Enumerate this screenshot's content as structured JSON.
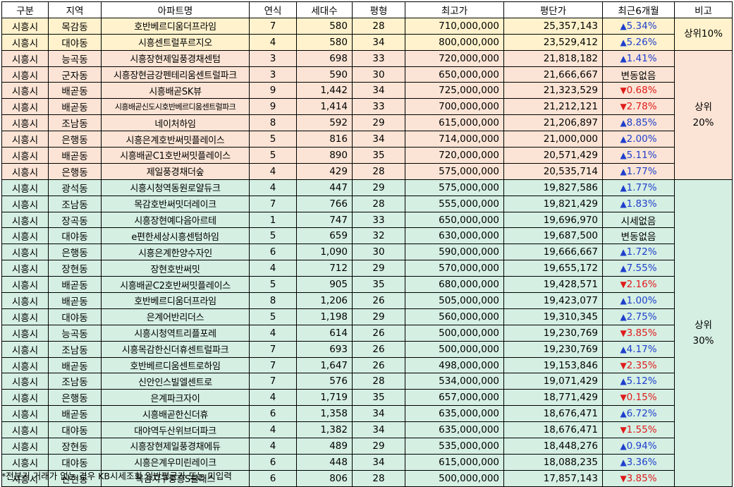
{
  "headers": [
    "구분",
    "지역",
    "아파트명",
    "연식",
    "세대수",
    "평형",
    "최고가",
    "평단가",
    "최근6개월",
    "비고"
  ],
  "groups": [
    {
      "label": "상위10%",
      "class": "g1",
      "start": 0,
      "count": 2
    },
    {
      "label": "상위\n20%",
      "class": "g2",
      "start": 2,
      "count": 8
    },
    {
      "label": "상위\n30%",
      "class": "g3",
      "start": 10,
      "count": 19
    }
  ],
  "rows": [
    {
      "gu": "시흥시",
      "dong": "목감동",
      "apt": "호반베르디움더프라임",
      "age": "7",
      "units": "580",
      "size": "28",
      "max": "710,000,000",
      "ppp": "25,357,143",
      "chg": "5.34%",
      "dir": "up",
      "g": "g1"
    },
    {
      "gu": "시흥시",
      "dong": "대야동",
      "apt": "시흥센트럴푸르지오",
      "age": "4",
      "units": "580",
      "size": "34",
      "max": "800,000,000",
      "ppp": "23,529,412",
      "chg": "5.26%",
      "dir": "up",
      "g": "g1"
    },
    {
      "gu": "시흥시",
      "dong": "능곡동",
      "apt": "시흥장현제일풍경채센텀",
      "age": "3",
      "units": "698",
      "size": "33",
      "max": "720,000,000",
      "ppp": "21,818,182",
      "chg": "1.41%",
      "dir": "up",
      "g": "g2"
    },
    {
      "gu": "시흥시",
      "dong": "군자동",
      "apt": "시흥장현금강펜테리움센트럴파크",
      "age": "3",
      "units": "590",
      "size": "30",
      "max": "650,000,000",
      "ppp": "21,666,667",
      "chg": "변동없음",
      "dir": "flat",
      "g": "g2"
    },
    {
      "gu": "시흥시",
      "dong": "배곧동",
      "apt": "시흥배곧SK뷰",
      "age": "9",
      "units": "1,442",
      "size": "34",
      "max": "725,000,000",
      "ppp": "21,323,529",
      "chg": "0.68%",
      "dir": "down",
      "g": "g2"
    },
    {
      "gu": "시흥시",
      "dong": "배곧동",
      "apt": "시흥배곧신도시호반베르디움센트럴파크",
      "age": "9",
      "units": "1,414",
      "size": "33",
      "max": "700,000,000",
      "ppp": "21,212,121",
      "chg": "2.78%",
      "dir": "down",
      "g": "g2",
      "small": true
    },
    {
      "gu": "시흥시",
      "dong": "조남동",
      "apt": "네이처하임",
      "age": "8",
      "units": "592",
      "size": "29",
      "max": "615,000,000",
      "ppp": "21,206,897",
      "chg": "8.85%",
      "dir": "up",
      "g": "g2"
    },
    {
      "gu": "시흥시",
      "dong": "은행동",
      "apt": "시흥은계호반써밋플레이스",
      "age": "5",
      "units": "816",
      "size": "34",
      "max": "714,000,000",
      "ppp": "21,000,000",
      "chg": "2.00%",
      "dir": "up",
      "g": "g2"
    },
    {
      "gu": "시흥시",
      "dong": "배곧동",
      "apt": "시흥배곧C1호반써밋플레이스",
      "age": "5",
      "units": "890",
      "size": "35",
      "max": "720,000,000",
      "ppp": "20,571,429",
      "chg": "5.11%",
      "dir": "up",
      "g": "g2"
    },
    {
      "gu": "시흥시",
      "dong": "은행동",
      "apt": "제일풍경채더숲",
      "age": "4",
      "units": "429",
      "size": "28",
      "max": "575,000,000",
      "ppp": "20,535,714",
      "chg": "1.77%",
      "dir": "up",
      "g": "g2"
    },
    {
      "gu": "시흥시",
      "dong": "광석동",
      "apt": "시흥시청역동원로얄듀크",
      "age": "4",
      "units": "447",
      "size": "29",
      "max": "575,000,000",
      "ppp": "19,827,586",
      "chg": "1.77%",
      "dir": "up",
      "g": "g3"
    },
    {
      "gu": "시흥시",
      "dong": "조남동",
      "apt": "목감호반써밋더레이크",
      "age": "7",
      "units": "766",
      "size": "28",
      "max": "555,000,000",
      "ppp": "19,821,429",
      "chg": "1.83%",
      "dir": "up",
      "g": "g3"
    },
    {
      "gu": "시흥시",
      "dong": "장곡동",
      "apt": "시흥장현예다음아르테",
      "age": "1",
      "units": "747",
      "size": "33",
      "max": "650,000,000",
      "ppp": "19,696,970",
      "chg": "시세없음",
      "dir": "flat",
      "g": "g3"
    },
    {
      "gu": "시흥시",
      "dong": "대야동",
      "apt": "e편한세상시흥센텀하임",
      "age": "5",
      "units": "659",
      "size": "32",
      "max": "630,000,000",
      "ppp": "19,687,500",
      "chg": "변동없음",
      "dir": "flat",
      "g": "g3"
    },
    {
      "gu": "시흥시",
      "dong": "은행동",
      "apt": "시흥은계한양수자인",
      "age": "6",
      "units": "1,090",
      "size": "30",
      "max": "590,000,000",
      "ppp": "19,666,667",
      "chg": "1.72%",
      "dir": "up",
      "g": "g3"
    },
    {
      "gu": "시흥시",
      "dong": "장현동",
      "apt": "장현호반써밋",
      "age": "4",
      "units": "712",
      "size": "29",
      "max": "570,000,000",
      "ppp": "19,655,172",
      "chg": "7.55%",
      "dir": "up",
      "g": "g3"
    },
    {
      "gu": "시흥시",
      "dong": "배곧동",
      "apt": "시흥배곧C2호반써밋플레이스",
      "age": "5",
      "units": "905",
      "size": "35",
      "max": "680,000,000",
      "ppp": "19,428,571",
      "chg": "2.16%",
      "dir": "down",
      "g": "g3"
    },
    {
      "gu": "시흥시",
      "dong": "배곧동",
      "apt": "호반베르디움더프라임",
      "age": "8",
      "units": "1,206",
      "size": "26",
      "max": "505,000,000",
      "ppp": "19,423,077",
      "chg": "1.00%",
      "dir": "up",
      "g": "g3"
    },
    {
      "gu": "시흥시",
      "dong": "대야동",
      "apt": "은계어반리더스",
      "age": "5",
      "units": "1,198",
      "size": "29",
      "max": "560,000,000",
      "ppp": "19,310,345",
      "chg": "2.75%",
      "dir": "up",
      "g": "g3"
    },
    {
      "gu": "시흥시",
      "dong": "능곡동",
      "apt": "시흥시청역트리플포레",
      "age": "4",
      "units": "614",
      "size": "26",
      "max": "500,000,000",
      "ppp": "19,230,769",
      "chg": "3.85%",
      "dir": "down",
      "g": "g3"
    },
    {
      "gu": "시흥시",
      "dong": "조남동",
      "apt": "시흥목감한신더휴센트럴파크",
      "age": "7",
      "units": "693",
      "size": "26",
      "max": "500,000,000",
      "ppp": "19,230,769",
      "chg": "4.17%",
      "dir": "up",
      "g": "g3"
    },
    {
      "gu": "시흥시",
      "dong": "배곧동",
      "apt": "호반베르디움센트로하임",
      "age": "7",
      "units": "1,647",
      "size": "26",
      "max": "498,000,000",
      "ppp": "19,153,846",
      "chg": "2.35%",
      "dir": "down",
      "g": "g3"
    },
    {
      "gu": "시흥시",
      "dong": "조남동",
      "apt": "신안인스빌엘센트로",
      "age": "7",
      "units": "576",
      "size": "28",
      "max": "534,000,000",
      "ppp": "19,071,429",
      "chg": "5.12%",
      "dir": "up",
      "g": "g3"
    },
    {
      "gu": "시흥시",
      "dong": "은행동",
      "apt": "은계파크자이",
      "age": "4",
      "units": "1,719",
      "size": "35",
      "max": "657,000,000",
      "ppp": "18,771,429",
      "chg": "0.15%",
      "dir": "down",
      "g": "g3"
    },
    {
      "gu": "시흥시",
      "dong": "배곧동",
      "apt": "시흥배곧한신더휴",
      "age": "6",
      "units": "1,358",
      "size": "34",
      "max": "635,000,000",
      "ppp": "18,676,471",
      "chg": "6.72%",
      "dir": "up",
      "g": "g3"
    },
    {
      "gu": "시흥시",
      "dong": "대야동",
      "apt": "대야역두산위브더파크",
      "age": "4",
      "units": "1,382",
      "size": "34",
      "max": "635,000,000",
      "ppp": "18,676,471",
      "chg": "1.55%",
      "dir": "down",
      "g": "g3"
    },
    {
      "gu": "시흥시",
      "dong": "장현동",
      "apt": "시흥장현제일풍경채에듀",
      "age": "4",
      "units": "489",
      "size": "29",
      "max": "535,000,000",
      "ppp": "18,448,276",
      "chg": "0.94%",
      "dir": "up",
      "g": "g3"
    },
    {
      "gu": "시흥시",
      "dong": "대야동",
      "apt": "시흥은계우미린레이크",
      "age": "6",
      "units": "448",
      "size": "34",
      "max": "615,000,000",
      "ppp": "18,088,235",
      "chg": "3.36%",
      "dir": "up",
      "g": "g3"
    },
    {
      "gu": "시흥시",
      "dong": "산현동",
      "apt": "목감지구중흥S클래스",
      "age": "6",
      "units": "806",
      "size": "28",
      "max": "500,000,000",
      "ppp": "17,857,143",
      "chg": "3.85%",
      "dir": "down",
      "g": "g3"
    }
  ],
  "footnote": "*전분기 거래가 없는 경우 KB시세조회 일반평균가 또는 미입력",
  "colors": {
    "up": "#1f3fcc",
    "down": "#e01b1b",
    "top10": "#fff2cc",
    "top20": "#fbe4d5",
    "top30": "#d5efe3"
  }
}
